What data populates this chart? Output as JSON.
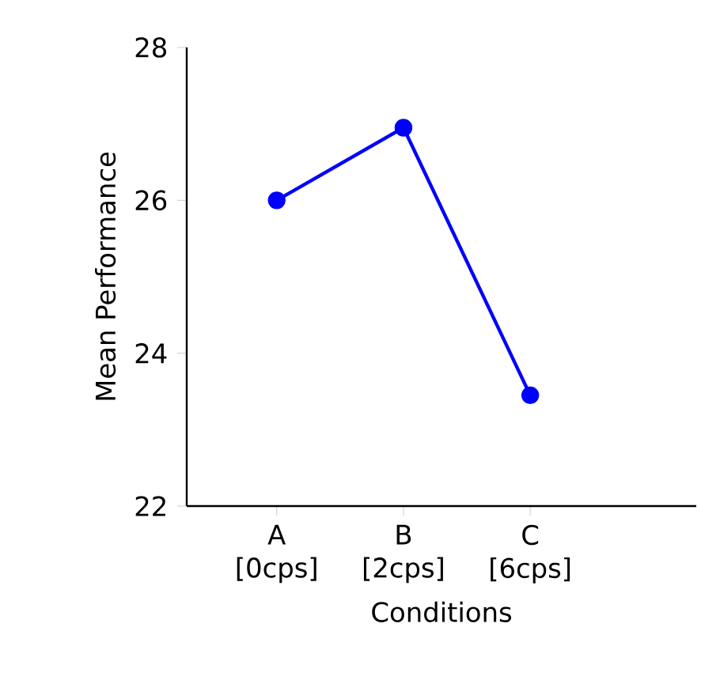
{
  "chart_data": {
    "type": "line",
    "xlabel": "Conditions",
    "ylabel": "Mean Performance",
    "categories": [
      "A [0cps]",
      "B [2cps]",
      "C [6cps]"
    ],
    "series": [
      {
        "color": "#0000ff",
        "values": [
          26.0,
          26.95,
          23.45
        ]
      }
    ],
    "ylim": [
      22,
      28
    ],
    "yticks": [
      22,
      24,
      26,
      28
    ],
    "marker": "circle",
    "line_style": "solid"
  }
}
